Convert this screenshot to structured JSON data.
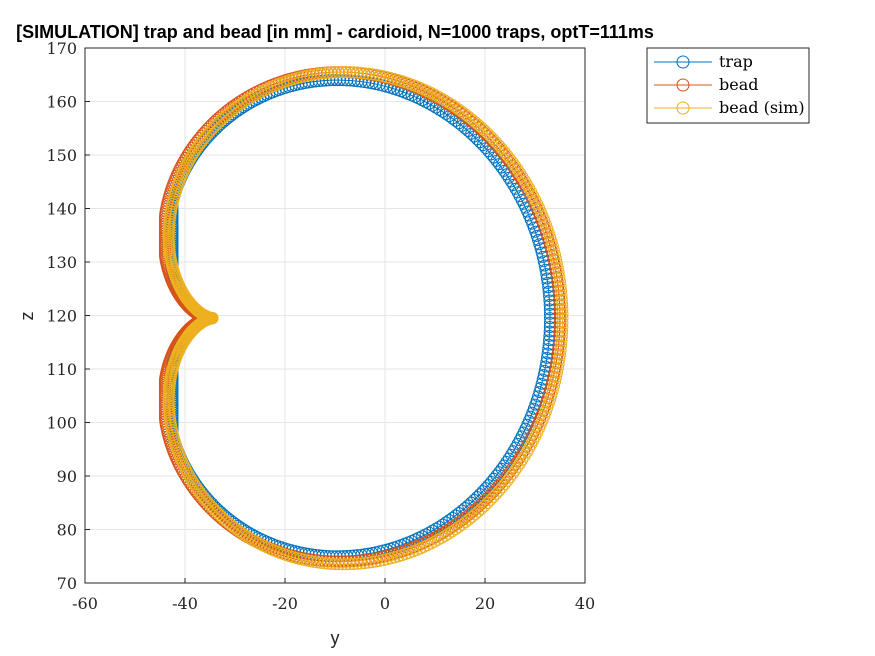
{
  "chart_data": {
    "type": "scatter",
    "title": "[SIMULATION] trap and bead [in mm] - cardioid, N=1000 traps, optT=111ms",
    "xlabel": "y",
    "ylabel": "z",
    "xlim": [
      -60,
      40
    ],
    "ylim": [
      70,
      170
    ],
    "xticks": [
      -60,
      -40,
      -20,
      0,
      20,
      40
    ],
    "yticks": [
      70,
      80,
      90,
      100,
      110,
      120,
      130,
      140,
      150,
      160,
      170
    ],
    "grid": true,
    "legend_location": "outside top-right",
    "n_points": 1000,
    "series": [
      {
        "name": "trap",
        "color": "#0072BD",
        "marker": "circle",
        "shape": "cardioid",
        "cusp": [
          -35,
          119.5
        ],
        "extent_y": [
          -42.5,
          33
        ],
        "extent_z": [
          75,
          164
        ],
        "points": [
          [
            -35,
            119.5
          ],
          [
            -41,
            126
          ],
          [
            -42.5,
            133
          ],
          [
            -40,
            143
          ],
          [
            -33,
            153
          ],
          [
            -22,
            160
          ],
          [
            -9,
            164
          ],
          [
            5,
            162
          ],
          [
            20,
            150
          ],
          [
            30,
            135
          ],
          [
            33,
            120
          ],
          [
            30,
            104
          ],
          [
            20,
            89
          ],
          [
            5,
            78
          ],
          [
            -9,
            75
          ],
          [
            -22,
            79
          ],
          [
            -33,
            87
          ],
          [
            -40,
            96
          ],
          [
            -42.5,
            106
          ],
          [
            -41,
            113
          ]
        ]
      },
      {
        "name": "bead",
        "color": "#D95319",
        "marker": "circle",
        "shape": "cardioid",
        "cusp": [
          -35.5,
          119.5
        ],
        "extent_y": [
          -44,
          35
        ],
        "extent_z": [
          74,
          165.5
        ],
        "points": [
          [
            -35.5,
            119.5
          ],
          [
            -42,
            127
          ],
          [
            -44,
            135
          ],
          [
            -41.5,
            145
          ],
          [
            -34,
            155
          ],
          [
            -23,
            162
          ],
          [
            -9,
            165.5
          ],
          [
            6,
            163.5
          ],
          [
            21,
            151
          ],
          [
            32,
            136
          ],
          [
            35,
            120
          ],
          [
            32,
            103
          ],
          [
            21,
            87
          ],
          [
            6,
            76.5
          ],
          [
            -9,
            74
          ],
          [
            -23,
            78
          ],
          [
            -34,
            86
          ],
          [
            -41.5,
            95
          ],
          [
            -44,
            105
          ],
          [
            -42,
            112
          ]
        ]
      },
      {
        "name": "bead (sim)",
        "color": "#EDB120",
        "marker": "circle",
        "shape": "cardioid",
        "cusp": [
          -34.5,
          119.5
        ],
        "extent_y": [
          -44.5,
          35.5
        ],
        "extent_z": [
          73.5,
          165.5
        ],
        "points": [
          [
            -34.5,
            119.5
          ],
          [
            -42,
            127
          ],
          [
            -44.5,
            135
          ],
          [
            -42,
            145
          ],
          [
            -34.5,
            155
          ],
          [
            -23,
            162
          ],
          [
            -9,
            165.5
          ],
          [
            6,
            163.5
          ],
          [
            21,
            151
          ],
          [
            32,
            136
          ],
          [
            35.5,
            120
          ],
          [
            32,
            103
          ],
          [
            21,
            87
          ],
          [
            6,
            76
          ],
          [
            -9,
            73.5
          ],
          [
            -23,
            77.5
          ],
          [
            -34.5,
            86
          ],
          [
            -42,
            95
          ],
          [
            -44.5,
            104.5
          ],
          [
            -42,
            112
          ]
        ]
      }
    ]
  }
}
